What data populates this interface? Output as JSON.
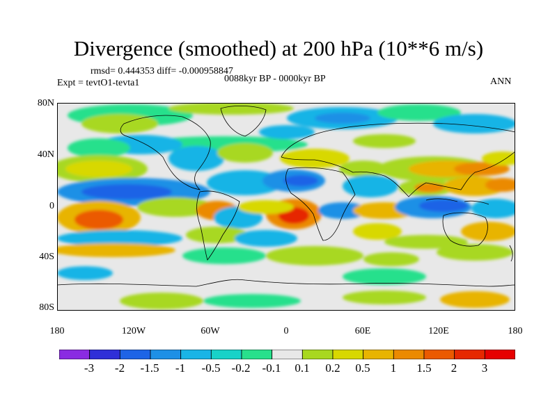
{
  "title": "Divergence (smoothed) at 200 hPa (10**6 m/s)",
  "stats_line": "rmsd= 0.444353  diff= -0.000958847",
  "period_line": "0088kyr BP - 0000kyr BP",
  "expt_line": "Expt = tevtO1-tevta1",
  "season": "ANN",
  "lat_labels": [
    "80N",
    "40N",
    "0",
    "40S",
    "80S"
  ],
  "lon_labels": [
    "180",
    "120W",
    "60W",
    "0",
    "60E",
    "120E",
    "180"
  ],
  "colorbar": {
    "labels": [
      "-3",
      "-2",
      "-1.5",
      "-1",
      "-0.5",
      "-0.2",
      "-0.1",
      "0.1",
      "0.2",
      "0.5",
      "1",
      "1.5",
      "2",
      "3"
    ],
    "colors": [
      "#8a2be2",
      "#2f2fd8",
      "#1e64e6",
      "#1e90e6",
      "#19b4e6",
      "#18d2c8",
      "#28e08c",
      "#e8e8e8",
      "#a8d820",
      "#d8d800",
      "#e8b400",
      "#eb8a00",
      "#eb5a00",
      "#e62800",
      "#e60000"
    ]
  }
}
